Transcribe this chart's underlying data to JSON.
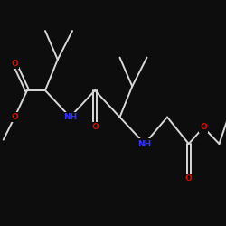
{
  "bg_color": "#0d0d0d",
  "bond_color": "#d8d8d8",
  "N_color": "#3333ff",
  "O_color": "#cc1100",
  "lw": 1.4,
  "fs_label": 6.5,
  "fs_small": 5.5,
  "xlim": [
    0,
    10
  ],
  "ylim": [
    2.5,
    8.0
  ]
}
